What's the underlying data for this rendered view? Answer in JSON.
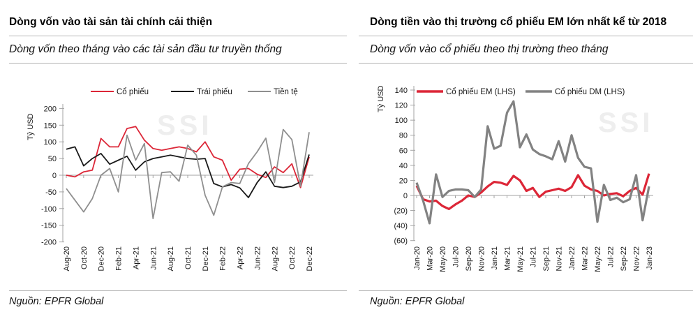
{
  "colors": {
    "accent_red": "#dc2637",
    "series_black": "#1a1a1a",
    "series_gray_left": "#8f8f8f",
    "series_gray_right": "#828282",
    "axis": "#a3a3a3",
    "rule": "#b5b5b5",
    "watermark": "#eeeeee"
  },
  "chart_data": [
    {
      "type": "line",
      "title": "Dòng vốn vào tài sản tài chính cải thiện",
      "subtitle": "Dòng vốn theo tháng vào các tài sản đầu tư truyền thống",
      "source": "Nguồn: EPFR Global",
      "watermark": "SSI",
      "ylabel": "Tỷ USD",
      "ylim": [
        -200,
        200
      ],
      "yticks": [
        200,
        150,
        100,
        50,
        0,
        -50,
        -100,
        -150,
        -200
      ],
      "ytick_labels": [
        "200",
        "150",
        "100",
        "50",
        "0",
        "-50",
        "-100",
        "-150",
        "-200"
      ],
      "negative_tick_color": null,
      "grid": false,
      "legend_position": "top-center",
      "x": [
        "Aug-20",
        "Sep-20",
        "Oct-20",
        "Nov-20",
        "Dec-20",
        "Jan-21",
        "Feb-21",
        "Mar-21",
        "Apr-21",
        "May-21",
        "Jun-21",
        "Jul-21",
        "Aug-21",
        "Sep-21",
        "Oct-21",
        "Nov-21",
        "Dec-21",
        "Jan-22",
        "Feb-22",
        "Mar-22",
        "Apr-22",
        "May-22",
        "Jun-22",
        "Jul-22",
        "Aug-22",
        "Sep-22",
        "Oct-22",
        "Nov-22",
        "Dec-22"
      ],
      "xtick_labels": [
        "Aug-20",
        "Oct-20",
        "Dec-20",
        "Feb-21",
        "Apr-21",
        "Jun-21",
        "Aug-21",
        "Oct-21",
        "Dec-21",
        "Feb-22",
        "Apr-22",
        "Jun-22",
        "Aug-22",
        "Oct-22",
        "Dec-22"
      ],
      "series": [
        {
          "name": "Cổ phiếu",
          "color": "#dc2637",
          "values": [
            0,
            -5,
            10,
            15,
            110,
            85,
            85,
            140,
            146,
            105,
            80,
            75,
            80,
            85,
            80,
            70,
            100,
            55,
            45,
            -15,
            18,
            20,
            3,
            -7,
            25,
            8,
            34,
            -37,
            55
          ]
        },
        {
          "name": "Trái phiếu",
          "color": "#1a1a1a",
          "values": [
            78,
            85,
            28,
            50,
            65,
            33,
            45,
            57,
            15,
            40,
            50,
            55,
            60,
            55,
            50,
            48,
            50,
            -25,
            -35,
            -28,
            -38,
            -67,
            -22,
            10,
            -33,
            -37,
            -33,
            -20,
            62
          ]
        },
        {
          "name": "Tiền tệ",
          "color": "#8f8f8f",
          "values": [
            -40,
            -75,
            -110,
            -70,
            0,
            20,
            -50,
            120,
            45,
            95,
            -130,
            8,
            10,
            -18,
            90,
            60,
            -60,
            -120,
            -35,
            -22,
            -25,
            35,
            70,
            111,
            -22,
            137,
            107,
            -33,
            129
          ]
        }
      ]
    },
    {
      "type": "line",
      "title": "Dòng tiền vào thị trường cổ phiếu EM lớn nhất kể từ 2018",
      "subtitle": "Dòng vốn vào cổ phiếu theo thị trường theo tháng",
      "source": "Nguồn: EPFR Global",
      "watermark": "SSI",
      "ylabel": "Tỷ USD",
      "ylim": [
        -60,
        140
      ],
      "yticks": [
        140,
        120,
        100,
        80,
        60,
        40,
        20,
        0,
        -20,
        -40,
        -60
      ],
      "ytick_labels": [
        "140",
        "120",
        "100",
        "80",
        "60",
        "40",
        "20",
        "0",
        "(20)",
        "(40)",
        "(60)"
      ],
      "negative_tick_color": "#dc2637",
      "grid": false,
      "legend_position": "top-left",
      "x": [
        "Jan-20",
        "Feb-20",
        "Mar-20",
        "Apr-20",
        "May-20",
        "Jun-20",
        "Jul-20",
        "Aug-20",
        "Sep-20",
        "Oct-20",
        "Nov-20",
        "Dec-20",
        "Jan-21",
        "Feb-21",
        "Mar-21",
        "Apr-21",
        "May-21",
        "Jun-21",
        "Jul-21",
        "Aug-21",
        "Sep-21",
        "Oct-21",
        "Nov-21",
        "Dec-21",
        "Jan-22",
        "Feb-22",
        "Mar-22",
        "Apr-22",
        "May-22",
        "Jun-22",
        "Jul-22",
        "Aug-22",
        "Sep-22",
        "Oct-22",
        "Nov-22",
        "Dec-22",
        "Jan-23"
      ],
      "xtick_labels": [
        "Jan-20",
        "Mar-20",
        "May-20",
        "Jul-20",
        "Sep-20",
        "Nov-20",
        "Jan-21",
        "Mar-21",
        "May-21",
        "Jul-21",
        "Sep-21",
        "Nov-21",
        "Jan-22",
        "Mar-22",
        "May-22",
        "Jul-22",
        "Sep-22",
        "Nov-22",
        "Jan-23"
      ],
      "series": [
        {
          "name": "Cổ phiếu EM (LHS)",
          "color": "#dc2637",
          "values": [
            13,
            -5,
            -8,
            -7,
            -14,
            -18,
            -12,
            -7,
            0,
            -2,
            4,
            12,
            18,
            17,
            14,
            26,
            20,
            6,
            10,
            -2,
            5,
            7,
            9,
            6,
            11,
            27,
            13,
            8,
            6,
            0,
            2,
            3,
            -1,
            6,
            10,
            1,
            29
          ]
        },
        {
          "name": "Cổ phiếu DM (LHS)",
          "color": "#828282",
          "values": [
            17,
            -7,
            -37,
            28,
            -2,
            6,
            8,
            8,
            7,
            -2,
            8,
            92,
            62,
            66,
            110,
            125,
            64,
            81,
            61,
            55,
            52,
            48,
            72,
            45,
            80,
            50,
            38,
            36,
            -35,
            14,
            -6,
            -3,
            -9,
            -5,
            27,
            -33,
            12
          ]
        }
      ]
    }
  ]
}
